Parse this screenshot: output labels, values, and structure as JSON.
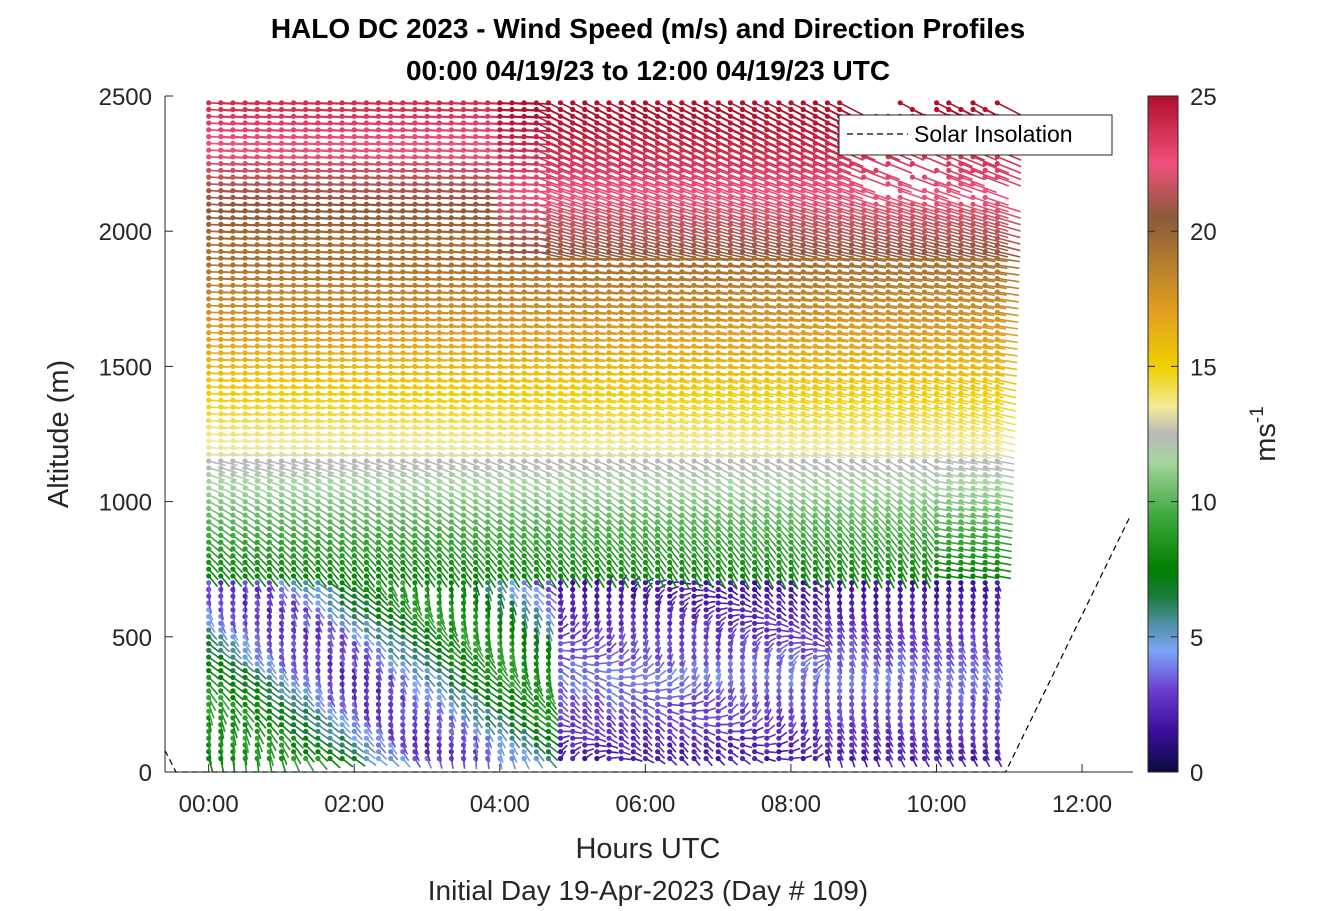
{
  "chart_data": {
    "type": "scatter",
    "title": "HALO DC 2023 - Wind Speed (m/s) and Direction Profiles",
    "subtitle": "00:00 04/19/23 to 12:00 04/19/23  UTC",
    "xlabel": "Hours UTC",
    "ylabel": "Altitude (m)",
    "footer": "Initial Day 19-Apr-2023 (Day # 109)",
    "x_ticks": [
      "00:00",
      "02:00",
      "04:00",
      "06:00",
      "08:00",
      "10:00",
      "12:00"
    ],
    "y_ticks": [
      "0",
      "500",
      "1000",
      "1500",
      "2000",
      "2500"
    ],
    "xlim_hours": [
      -0.6,
      12.7
    ],
    "ylim": [
      0,
      2500
    ],
    "colorbar": {
      "label": "ms",
      "label_exponent": "-1",
      "range": [
        0,
        25
      ],
      "ticks": [
        "0",
        "5",
        "10",
        "15",
        "20",
        "25"
      ],
      "colors": [
        {
          "v": 0,
          "c": "#0d0a3f"
        },
        {
          "v": 1.5,
          "c": "#3a0f9a"
        },
        {
          "v": 3,
          "c": "#6a3ccf"
        },
        {
          "v": 4.5,
          "c": "#7ba7f5"
        },
        {
          "v": 5.5,
          "c": "#4f8fa6"
        },
        {
          "v": 6.5,
          "c": "#1a7a3a"
        },
        {
          "v": 7.5,
          "c": "#008000"
        },
        {
          "v": 9.5,
          "c": "#40a840"
        },
        {
          "v": 11.5,
          "c": "#a6d6a0"
        },
        {
          "v": 12.5,
          "c": "#b8b8b8"
        },
        {
          "v": 13.5,
          "c": "#f2ea9a"
        },
        {
          "v": 15,
          "c": "#f0d000"
        },
        {
          "v": 17,
          "c": "#e0a020"
        },
        {
          "v": 19,
          "c": "#b07a30"
        },
        {
          "v": 20.5,
          "c": "#8a5a3a"
        },
        {
          "v": 22.5,
          "c": "#f0507a"
        },
        {
          "v": 25,
          "c": "#b0102a"
        }
      ]
    },
    "legend": {
      "label": "Solar Insolation",
      "position": "top-right",
      "style": "dashed"
    },
    "solar_insolation": {
      "x_hours": [
        -0.6,
        -0.45,
        -0.4,
        10.95,
        12.65
      ],
      "y": [
        80,
        0,
        0,
        0,
        940
      ]
    },
    "wind_profiles": {
      "time_start_hours": 0.0,
      "time_step_hours": 0.1667,
      "time_count": 66,
      "alt_start_m": 50,
      "alt_step_m": 25,
      "alt_count": 98,
      "speed_regimes": [
        {
          "alt_m": [
            1900,
            2500
          ],
          "speed_ms": 21,
          "direction": "westerly"
        },
        {
          "alt_m": [
            1450,
            1900
          ],
          "speed_ms": 17,
          "direction": "westerly"
        },
        {
          "alt_m": [
            1150,
            1450
          ],
          "speed_ms": 14,
          "direction": "westerly"
        },
        {
          "alt_m": [
            700,
            1150
          ],
          "speed_ms": 9,
          "direction": "northwesterly"
        },
        {
          "alt_m": [
            0,
            700
          ],
          "speed_ms": 4,
          "direction": "variable"
        }
      ]
    }
  }
}
